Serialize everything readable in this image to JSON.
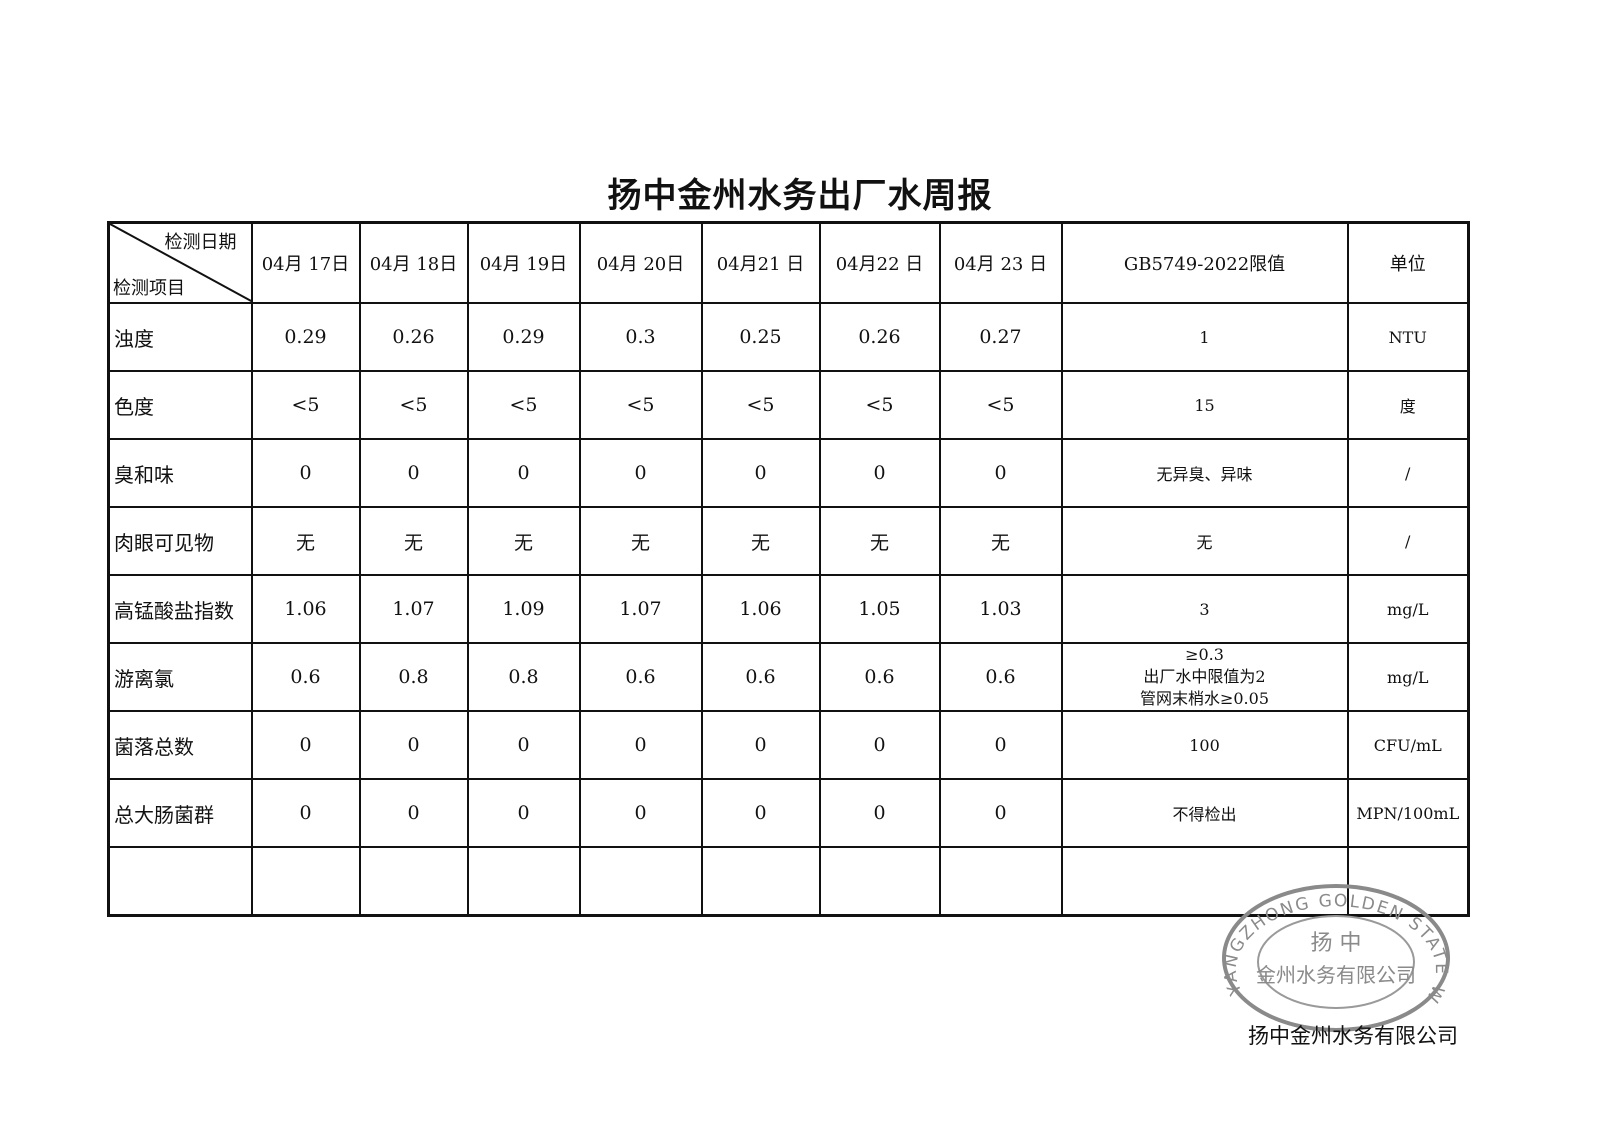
{
  "title": "扬中金州水务出厂水周报",
  "table": {
    "corner_top": "检测日期",
    "corner_bottom": "检测项目",
    "dates": [
      "04月 17日",
      "04月 18日",
      "04月 19日",
      "04月 20日",
      "04月21 日",
      "04月22 日",
      "04月 23 日"
    ],
    "limit_header": "GB5749-2022限值",
    "unit_header": "单位",
    "rows": [
      {
        "item": "浊度",
        "values": [
          "0.29",
          "0.26",
          "0.29",
          "0.3",
          "0.25",
          "0.26",
          "0.27"
        ],
        "limit": [
          "1"
        ],
        "unit": "NTU"
      },
      {
        "item": "色度",
        "values": [
          "<5",
          "<5",
          "<5",
          "<5",
          "<5",
          "<5",
          "<5"
        ],
        "limit": [
          "15"
        ],
        "unit": "度"
      },
      {
        "item": "臭和味",
        "values": [
          "0",
          "0",
          "0",
          "0",
          "0",
          "0",
          "0"
        ],
        "limit": [
          "无异臭、异味"
        ],
        "unit": "/"
      },
      {
        "item": "肉眼可见物",
        "values": [
          "无",
          "无",
          "无",
          "无",
          "无",
          "无",
          "无"
        ],
        "limit": [
          "无"
        ],
        "unit": "/"
      },
      {
        "item": "高锰酸盐指数",
        "values": [
          "1.06",
          "1.07",
          "1.09",
          "1.07",
          "1.06",
          "1.05",
          "1.03"
        ],
        "limit": [
          "3"
        ],
        "unit": "mg/L"
      },
      {
        "item": "游离氯",
        "values": [
          "0.6",
          "0.8",
          "0.8",
          "0.6",
          "0.6",
          "0.6",
          "0.6"
        ],
        "limit": [
          "≥0.3",
          "出厂水中限值为2",
          "管网末梢水≥0.05"
        ],
        "unit": "mg/L"
      },
      {
        "item": "菌落总数",
        "values": [
          "0",
          "0",
          "0",
          "0",
          "0",
          "0",
          "0"
        ],
        "limit": [
          "100"
        ],
        "unit": "CFU/mL"
      },
      {
        "item": "总大肠菌群",
        "values": [
          "0",
          "0",
          "0",
          "0",
          "0",
          "0",
          "0"
        ],
        "limit": [
          "不得检出"
        ],
        "unit": "MPN/100mL"
      }
    ]
  },
  "stamp": {
    "outer_text": "YANGZHONG GOLDEN STATE WATER CO., LTD.",
    "inner_line1": "扬  中",
    "inner_line2": "金州水务有限公司",
    "color": "#8a8a8a"
  },
  "footer": {
    "company": "扬中金州水务有限公司"
  }
}
